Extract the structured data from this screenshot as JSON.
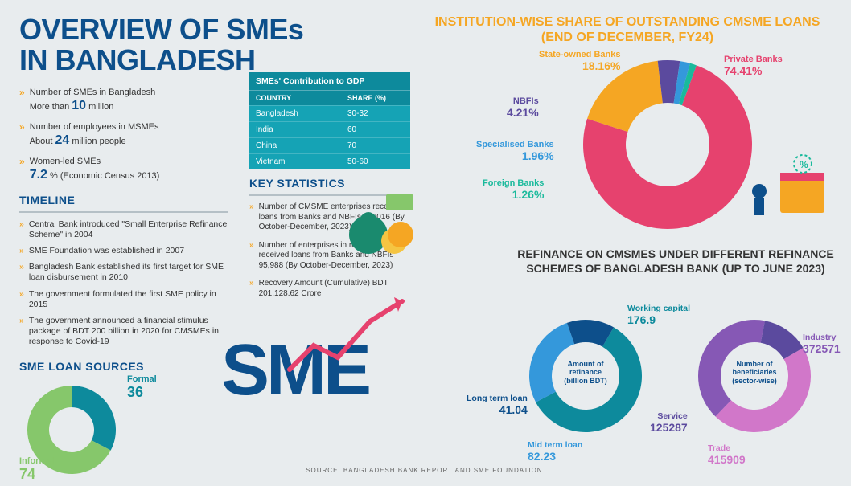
{
  "title_line1": "OVERVIEW OF SMEs",
  "title_line2": "IN BANGLADESH",
  "bullets": [
    {
      "pre": "Number of SMEs in Bangladesh",
      "big": "10",
      "post": " million",
      "prefix": "More than "
    },
    {
      "pre": "Number of employees in MSMEs",
      "big": "24",
      "post": " million people",
      "prefix": "About "
    },
    {
      "pre": "Women-led SMEs",
      "big": "7.2",
      "post": " % (Economic Census 2013)",
      "prefix": ""
    }
  ],
  "timeline_title": "TIMELINE",
  "timeline": [
    "Central Bank introduced \"Small Enterprise Refinance Scheme\" in 2004",
    "SME Foundation was established in 2007",
    "Bangladesh Bank established its first target for SME loan disbursement in 2010",
    "The government formulated the first SME policy in 2015",
    "The government announced a financial stimulus package of BDT 200 billion in 2020 for CMSMEs in response to Covid-19"
  ],
  "gdp": {
    "title": "SMEs' Contribution to GDP",
    "col1": "COUNTRY",
    "col2": "SHARE (%)",
    "rows": [
      {
        "c": "Bangladesh",
        "s": "30-32"
      },
      {
        "c": "India",
        "s": "60"
      },
      {
        "c": "China",
        "s": "70"
      },
      {
        "c": "Vietnam",
        "s": "50-60"
      }
    ]
  },
  "keystats_title": "KEY STATISTICS",
  "keystats": [
    "Number of CMSME enterprises received loans from Banks and NBFIs  369016 (By October-December, 2023)",
    "Number of enterprises in rural areas received loans from Banks and NBFIs 95,988 (By October-December, 2023)",
    "Recovery Amount (Cumulative) BDT 201,128.62 Crore"
  ],
  "loan_sources": {
    "title": "SME LOAN SOURCES",
    "informal": {
      "label": "Informal",
      "value": 74,
      "color": "#86c76b"
    },
    "formal": {
      "label": "Formal",
      "value": 36,
      "color": "#0d8a9c"
    }
  },
  "pie": {
    "title": "INSTITUTION-WISE SHARE OF OUTSTANDING CMSME LOANS (END OF DECEMBER, FY24)",
    "slices": [
      {
        "label": "Private Banks",
        "value": 74.41,
        "color": "#e6426e"
      },
      {
        "label": "State-owned Banks",
        "value": 18.16,
        "color": "#f5a623"
      },
      {
        "label": "NBFIs",
        "value": 4.21,
        "color": "#5b4a9e"
      },
      {
        "label": "Specialised Banks",
        "value": 1.96,
        "color": "#3498db"
      },
      {
        "label": "Foreign Banks",
        "value": 1.26,
        "color": "#1aba9c"
      }
    ]
  },
  "refinance_title": "REFINANCE ON CMSMES UNDER DIFFERENT REFINANCE SCHEMES OF BANGLADESH BANK (UP TO JUNE 2023)",
  "donut_a": {
    "center": "Amount of refinance (billion BDT)",
    "slices": [
      {
        "label": "Working capital",
        "value": 176.9,
        "color": "#0d8a9c"
      },
      {
        "label": "Mid term loan",
        "value": 82.23,
        "color": "#3498db"
      },
      {
        "label": "Long term loan",
        "value": 41.04,
        "color": "#0d4f8b"
      }
    ]
  },
  "donut_b": {
    "center": "Number of beneficiaries (sector-wise)",
    "slices": [
      {
        "label": "Trade",
        "value": 415909,
        "color": "#d177c9"
      },
      {
        "label": "Industry",
        "value": 372571,
        "color": "#8658b5"
      },
      {
        "label": "Service",
        "value": 125287,
        "color": "#5b4a9e"
      }
    ]
  },
  "source": "SOURCE: BANGLADESH BANK REPORT AND SME FOUNDATION.",
  "colors": {
    "bg": "#e8ecee",
    "title": "#0d4f8b",
    "accent": "#f5a623"
  }
}
